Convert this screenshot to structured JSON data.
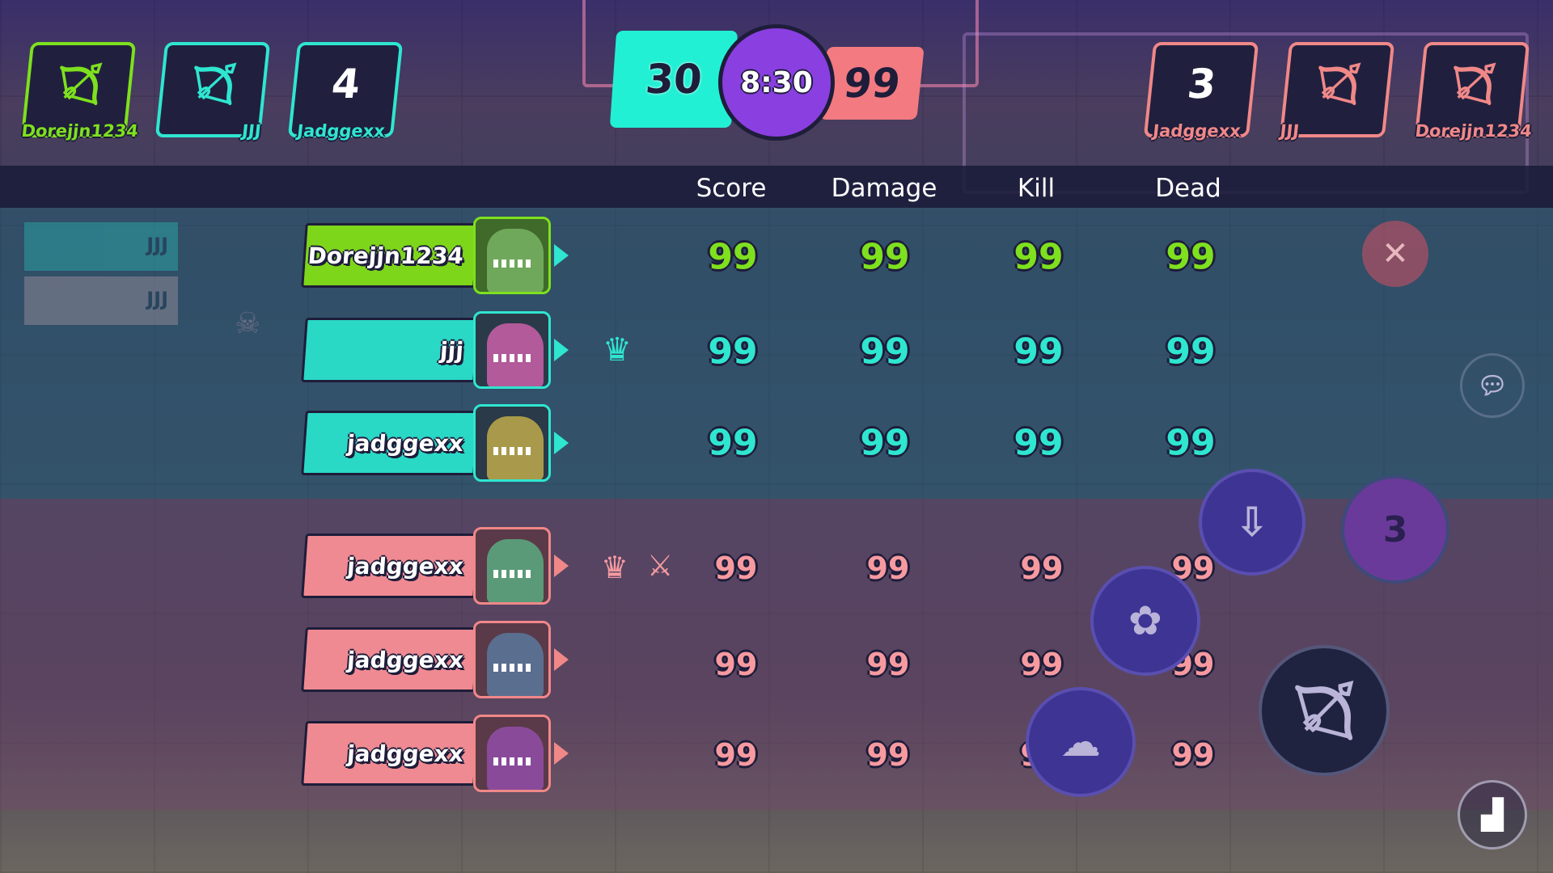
{
  "top_bar": {
    "team_left": [
      {
        "name": "Dorejjn1234",
        "icon": "bow-icon",
        "highlight": true
      },
      {
        "name": "JJJ",
        "icon": "bow-icon"
      },
      {
        "name": "Jadggexx",
        "icon": "respawn-count",
        "value": "4"
      }
    ],
    "team_right": [
      {
        "name": "Jadggexx",
        "icon": "respawn-count",
        "value": "3"
      },
      {
        "name": "JJJ",
        "icon": "bow-icon"
      },
      {
        "name": "Dorejjn1234",
        "icon": "bow-icon"
      }
    ],
    "score_left": "30",
    "timer": "8:30",
    "score_right": "99"
  },
  "scoreboard": {
    "headers": {
      "score": "Score",
      "damage": "Damage",
      "kill": "Kill",
      "dead": "Dead"
    },
    "team_blue": [
      {
        "name": "Dorejjn1234",
        "score": "99",
        "damage": "99",
        "kill": "99",
        "dead": "99",
        "is_self": true
      },
      {
        "name": "jjj",
        "score": "99",
        "damage": "99",
        "kill": "99",
        "dead": "99",
        "badges": [
          "crown-icon"
        ]
      },
      {
        "name": "jadggexx",
        "score": "99",
        "damage": "99",
        "kill": "99",
        "dead": "99"
      }
    ],
    "team_red": [
      {
        "name": "jadggexx",
        "score": "99",
        "damage": "99",
        "kill": "99",
        "dead": "99",
        "badges": [
          "crown-icon",
          "crossed-swords-icon"
        ]
      },
      {
        "name": "jadggexx",
        "score": "99",
        "damage": "99",
        "kill": "99",
        "dead": "99"
      },
      {
        "name": "jadggexx",
        "score": "99",
        "damage": "99",
        "kill": "99",
        "dead": "99"
      }
    ]
  },
  "background": {
    "ghost_list": [
      "JJJ",
      "JJJ"
    ],
    "skill_charges": "3"
  },
  "colors": {
    "self": "#7ee01e",
    "team_blue": "#2fe6d0",
    "team_red": "#f08888",
    "timer": "#8a3fe0"
  }
}
